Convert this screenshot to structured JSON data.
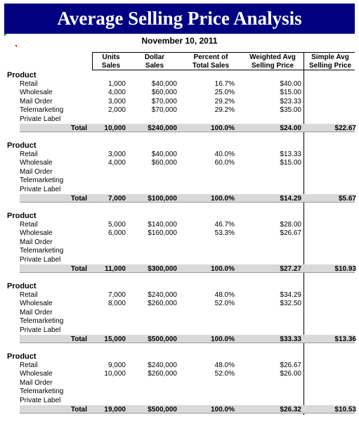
{
  "title": "Average Selling Price Analysis",
  "date": "November 10, 2011",
  "headers": [
    {
      "line1": "Units",
      "line2": "Sales"
    },
    {
      "line1": "Dollar",
      "line2": "Sales"
    },
    {
      "line1": "Percent of",
      "line2": "Total Sales"
    },
    {
      "line1": "Weighted Avg",
      "line2": "Selling Price"
    },
    {
      "line1": "Simple Avg",
      "line2": "Selling Price"
    }
  ],
  "sections": [
    {
      "title": "Product",
      "rows": [
        {
          "label": "Retail",
          "units": "1,000",
          "dollars": "$40,000",
          "percent": "16.7%",
          "weighted": "$40.00"
        },
        {
          "label": "Wholesale",
          "units": "4,000",
          "dollars": "$60,000",
          "percent": "25.0%",
          "weighted": "$15.00"
        },
        {
          "label": "Mail Order",
          "units": "3,000",
          "dollars": "$70,000",
          "percent": "29.2%",
          "weighted": "$23.33"
        },
        {
          "label": "Telemarketing",
          "units": "2,000",
          "dollars": "$70,000",
          "percent": "29.2%",
          "weighted": "$35.00"
        },
        {
          "label": "Private Label",
          "units": "",
          "dollars": "",
          "percent": "",
          "weighted": ""
        }
      ],
      "total": {
        "label": "Total",
        "units": "10,000",
        "dollars": "$240,000",
        "percent": "100.0%",
        "weighted": "$24.00",
        "simple": "$22.67"
      }
    },
    {
      "title": "Product",
      "rows": [
        {
          "label": "Retail",
          "units": "3,000",
          "dollars": "$40,000",
          "percent": "40.0%",
          "weighted": "$13.33"
        },
        {
          "label": "Wholesale",
          "units": "4,000",
          "dollars": "$60,000",
          "percent": "60.0%",
          "weighted": "$15.00"
        },
        {
          "label": "Mail Order",
          "units": "",
          "dollars": "",
          "percent": "",
          "weighted": ""
        },
        {
          "label": "Telemarketing",
          "units": "",
          "dollars": "",
          "percent": "",
          "weighted": ""
        },
        {
          "label": "Private Label",
          "units": "",
          "dollars": "",
          "percent": "",
          "weighted": ""
        }
      ],
      "total": {
        "label": "Total",
        "units": "7,000",
        "dollars": "$100,000",
        "percent": "100.0%",
        "weighted": "$14.29",
        "simple": "$5.67"
      }
    },
    {
      "title": "Product",
      "rows": [
        {
          "label": "Retail",
          "units": "5,000",
          "dollars": "$140,000",
          "percent": "46.7%",
          "weighted": "$28.00"
        },
        {
          "label": "Wholesale",
          "units": "6,000",
          "dollars": "$160,000",
          "percent": "53.3%",
          "weighted": "$26.67"
        },
        {
          "label": "Mail Order",
          "units": "",
          "dollars": "",
          "percent": "",
          "weighted": ""
        },
        {
          "label": "Telemarketing",
          "units": "",
          "dollars": "",
          "percent": "",
          "weighted": ""
        },
        {
          "label": "Private Label",
          "units": "",
          "dollars": "",
          "percent": "",
          "weighted": ""
        }
      ],
      "total": {
        "label": "Total",
        "units": "11,000",
        "dollars": "$300,000",
        "percent": "100.0%",
        "weighted": "$27.27",
        "simple": "$10.93"
      }
    },
    {
      "title": "Product",
      "rows": [
        {
          "label": "Retail",
          "units": "7,000",
          "dollars": "$240,000",
          "percent": "48.0%",
          "weighted": "$34.29"
        },
        {
          "label": "Wholesale",
          "units": "8,000",
          "dollars": "$260,000",
          "percent": "52.0%",
          "weighted": "$32.50"
        },
        {
          "label": "Mail Order",
          "units": "",
          "dollars": "",
          "percent": "",
          "weighted": ""
        },
        {
          "label": "Telemarketing",
          "units": "",
          "dollars": "",
          "percent": "",
          "weighted": ""
        },
        {
          "label": "Private Label",
          "units": "",
          "dollars": "",
          "percent": "",
          "weighted": ""
        }
      ],
      "total": {
        "label": "Total",
        "units": "15,000",
        "dollars": "$500,000",
        "percent": "100.0%",
        "weighted": "$33.33",
        "simple": "$13.36"
      }
    },
    {
      "title": "Product",
      "rows": [
        {
          "label": "Retail",
          "units": "9,000",
          "dollars": "$240,000",
          "percent": "48.0%",
          "weighted": "$26.67"
        },
        {
          "label": "Wholesale",
          "units": "10,000",
          "dollars": "$260,000",
          "percent": "52.0%",
          "weighted": "$26.00"
        },
        {
          "label": "Mail Order",
          "units": "",
          "dollars": "",
          "percent": "",
          "weighted": ""
        },
        {
          "label": "Telemarketing",
          "units": "",
          "dollars": "",
          "percent": "",
          "weighted": ""
        },
        {
          "label": "Private Label",
          "units": "",
          "dollars": "",
          "percent": "",
          "weighted": ""
        }
      ],
      "total": {
        "label": "Total",
        "units": "19,000",
        "dollars": "$500,000",
        "percent": "100.0%",
        "weighted": "$26.32",
        "simple": "$10.53"
      }
    }
  ]
}
